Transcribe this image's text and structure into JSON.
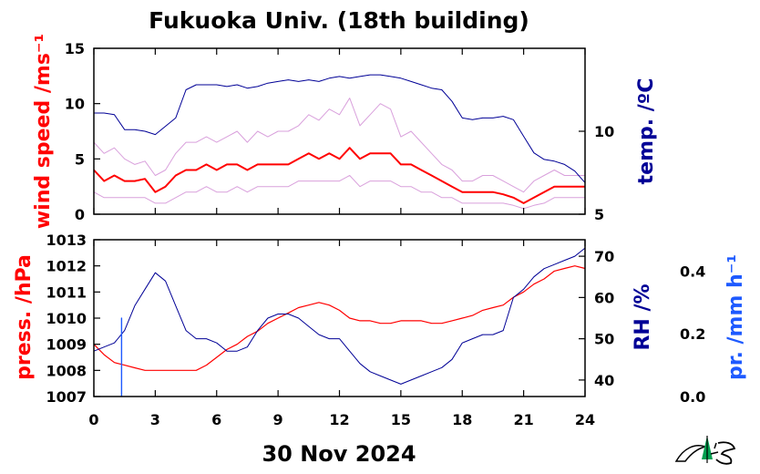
{
  "title": "Fukuoka Univ. (18th building)",
  "date_label": "30 Nov 2024",
  "colors": {
    "red": "#ff0000",
    "navy": "#000096",
    "blue": "#1e5aff",
    "gust": "#d9a0dc",
    "logo": "#00a050"
  },
  "logo": {
    "name": "university-logo-icon"
  },
  "chart_data": [
    {
      "type": "line",
      "panel": "top",
      "x_label": "",
      "x_ticks": [
        "0",
        "3",
        "6",
        "9",
        "12",
        "15",
        "18",
        "21",
        "24"
      ],
      "xlim": [
        0,
        24
      ],
      "left_axis": {
        "label": "wind speed /ms⁻¹",
        "color": "#ff0000",
        "ylim": [
          0,
          15
        ],
        "ticks": [
          "0",
          "5",
          "10",
          "15"
        ]
      },
      "right_axis": {
        "label": "temp. /ºC",
        "color": "#000096",
        "ylim": [
          5,
          15
        ],
        "ticks": [
          "5",
          "10"
        ]
      },
      "series": [
        {
          "axis": "left",
          "color": "#d9a0dc",
          "x": [
            0,
            0.5,
            1,
            1.5,
            2,
            2.5,
            3,
            3.5,
            4,
            4.5,
            5,
            5.5,
            6,
            6.5,
            7,
            7.5,
            8,
            8.5,
            9,
            9.5,
            10,
            10.5,
            11,
            11.5,
            12,
            12.5,
            13,
            13.5,
            14,
            14.5,
            15,
            15.5,
            16,
            16.5,
            17,
            17.5,
            18,
            18.5,
            19,
            19.5,
            20,
            20.5,
            21,
            21.5,
            22,
            22.5,
            23,
            23.5,
            24
          ],
          "y": [
            6.5,
            5.5,
            6.0,
            5.0,
            4.5,
            4.8,
            3.5,
            4.0,
            5.5,
            6.5,
            6.5,
            7.0,
            6.5,
            7.0,
            7.5,
            6.5,
            7.5,
            7.0,
            7.5,
            7.5,
            8.0,
            9.0,
            8.5,
            9.5,
            9.0,
            10.5,
            8.0,
            9.0,
            10.0,
            9.5,
            7.0,
            7.5,
            6.5,
            5.5,
            4.5,
            4.0,
            3.0,
            3.0,
            3.5,
            3.5,
            3.0,
            2.5,
            2.0,
            3.0,
            3.5,
            4.0,
            3.5,
            3.5,
            3.5
          ]
        },
        {
          "axis": "left",
          "color": "#d9a0dc",
          "x": [
            0,
            0.5,
            1,
            1.5,
            2,
            2.5,
            3,
            3.5,
            4,
            4.5,
            5,
            5.5,
            6,
            6.5,
            7,
            7.5,
            8,
            8.5,
            9,
            9.5,
            10,
            10.5,
            11,
            11.5,
            12,
            12.5,
            13,
            13.5,
            14,
            14.5,
            15,
            15.5,
            16,
            16.5,
            17,
            17.5,
            18,
            18.5,
            19,
            19.5,
            20,
            20.5,
            21,
            21.5,
            22,
            22.5,
            23,
            23.5,
            24
          ],
          "y": [
            2.0,
            1.5,
            1.5,
            1.5,
            1.5,
            1.5,
            1.0,
            1.0,
            1.5,
            2.0,
            2.0,
            2.5,
            2.0,
            2.0,
            2.5,
            2.0,
            2.5,
            2.5,
            2.5,
            2.5,
            3.0,
            3.0,
            3.0,
            3.0,
            3.0,
            3.5,
            2.5,
            3.0,
            3.0,
            3.0,
            2.5,
            2.5,
            2.0,
            2.0,
            1.5,
            1.5,
            1.0,
            1.0,
            1.0,
            1.0,
            1.0,
            0.8,
            0.5,
            0.8,
            1.0,
            1.5,
            1.5,
            1.5,
            1.5
          ]
        },
        {
          "axis": "left",
          "color": "#ff0000",
          "name": "",
          "x": [
            0,
            0.5,
            1,
            1.5,
            2,
            2.5,
            3,
            3.5,
            4,
            4.5,
            5,
            5.5,
            6,
            6.5,
            7,
            7.5,
            8,
            8.5,
            9,
            9.5,
            10,
            10.5,
            11,
            11.5,
            12,
            12.5,
            13,
            13.5,
            14,
            14.5,
            15,
            15.5,
            16,
            16.5,
            17,
            17.5,
            18,
            18.5,
            19,
            19.5,
            20,
            20.5,
            21,
            21.5,
            22,
            22.5,
            23,
            23.5,
            24
          ],
          "y": [
            4.0,
            3.0,
            3.5,
            3.0,
            3.0,
            3.2,
            2.0,
            2.5,
            3.5,
            4.0,
            4.0,
            4.5,
            4.0,
            4.5,
            4.5,
            4.0,
            4.5,
            4.5,
            4.5,
            4.5,
            5.0,
            5.5,
            5.0,
            5.5,
            5.0,
            6.0,
            5.0,
            5.5,
            5.5,
            5.5,
            4.5,
            4.5,
            4.0,
            3.5,
            3.0,
            2.5,
            2.0,
            2.0,
            2.0,
            2.0,
            1.8,
            1.5,
            1.0,
            1.5,
            2.0,
            2.5,
            2.5,
            2.5,
            2.5
          ]
        },
        {
          "axis": "right",
          "color": "#000096",
          "name": "",
          "x": [
            0,
            0.5,
            1,
            1.5,
            2,
            2.5,
            3,
            3.5,
            4,
            4.5,
            5,
            5.5,
            6,
            6.5,
            7,
            7.5,
            8,
            8.5,
            9,
            9.5,
            10,
            10.5,
            11,
            11.5,
            12,
            12.5,
            13,
            13.5,
            14,
            14.5,
            15,
            15.5,
            16,
            16.5,
            17,
            17.5,
            18,
            18.5,
            19,
            19.5,
            20,
            20.5,
            21,
            21.5,
            22,
            22.5,
            23,
            23.5,
            24
          ],
          "y": [
            11.1,
            11.1,
            11.0,
            10.1,
            10.1,
            10.0,
            9.8,
            10.3,
            10.8,
            12.5,
            12.8,
            12.8,
            12.8,
            12.7,
            12.8,
            12.6,
            12.7,
            12.9,
            13.0,
            13.1,
            13.0,
            13.1,
            13.0,
            13.2,
            13.3,
            13.2,
            13.3,
            13.4,
            13.4,
            13.3,
            13.2,
            13.0,
            12.8,
            12.6,
            12.5,
            11.8,
            10.8,
            10.7,
            10.8,
            10.8,
            10.9,
            10.7,
            9.7,
            8.7,
            8.3,
            8.2,
            8.0,
            7.6,
            6.9
          ]
        }
      ]
    },
    {
      "type": "line",
      "panel": "bottom",
      "x_label": "30 Nov 2024",
      "x_ticks": [
        "0",
        "3",
        "6",
        "9",
        "12",
        "15",
        "18",
        "21",
        "24"
      ],
      "xlim": [
        0,
        24
      ],
      "left_axis": {
        "label": "press. /hPa",
        "color": "#ff0000",
        "ylim": [
          1007,
          1013
        ],
        "ticks": [
          "1007",
          "1008",
          "1009",
          "1010",
          "1011",
          "1012",
          "1013"
        ]
      },
      "right_axis": {
        "label": "RH /%",
        "color": "#000096",
        "ylim": [
          36,
          74
        ],
        "ticks": [
          "40",
          "50",
          "60",
          "70"
        ]
      },
      "right_axis_2": {
        "label": "pr. /mm h⁻¹",
        "color": "#1e5aff",
        "ylim": [
          0.0,
          0.5
        ],
        "ticks": [
          "0.0",
          "0.2",
          "0.4"
        ]
      },
      "series": [
        {
          "axis": "left",
          "color": "#ff0000",
          "name": "",
          "x": [
            0,
            0.5,
            1,
            1.5,
            2,
            2.5,
            3,
            3.5,
            4,
            4.5,
            5,
            5.5,
            6,
            6.5,
            7,
            7.5,
            8,
            8.5,
            9,
            9.5,
            10,
            10.5,
            11,
            11.5,
            12,
            12.5,
            13,
            13.5,
            14,
            14.5,
            15,
            15.5,
            16,
            16.5,
            17,
            17.5,
            18,
            18.5,
            19,
            19.5,
            20,
            20.5,
            21,
            21.5,
            22,
            22.5,
            23,
            23.5,
            24
          ],
          "y": [
            1009.0,
            1008.6,
            1008.3,
            1008.2,
            1008.1,
            1008.0,
            1008.0,
            1008.0,
            1008.0,
            1008.0,
            1008.0,
            1008.2,
            1008.5,
            1008.8,
            1009.0,
            1009.3,
            1009.5,
            1009.8,
            1010.0,
            1010.2,
            1010.4,
            1010.5,
            1010.6,
            1010.5,
            1010.3,
            1010.0,
            1009.9,
            1009.9,
            1009.8,
            1009.8,
            1009.9,
            1009.9,
            1009.9,
            1009.8,
            1009.8,
            1009.9,
            1010.0,
            1010.1,
            1010.3,
            1010.4,
            1010.5,
            1010.8,
            1011.0,
            1011.3,
            1011.5,
            1011.8,
            1011.9,
            1012.0,
            1011.9
          ]
        },
        {
          "axis": "right",
          "color": "#000096",
          "name": "",
          "x": [
            0,
            0.5,
            1,
            1.5,
            2,
            2.5,
            3,
            3.5,
            4,
            4.5,
            5,
            5.5,
            6,
            6.5,
            7,
            7.5,
            8,
            8.5,
            9,
            9.5,
            10,
            10.5,
            11,
            11.5,
            12,
            12.5,
            13,
            13.5,
            14,
            14.5,
            15,
            15.5,
            16,
            16.5,
            17,
            17.5,
            18,
            18.5,
            19,
            19.5,
            20,
            20.5,
            21,
            21.5,
            22,
            22.5,
            23,
            23.5,
            24
          ],
          "y": [
            47,
            48,
            49,
            52,
            58,
            62,
            66,
            64,
            58,
            52,
            50,
            50,
            49,
            47,
            47,
            48,
            52,
            55,
            56,
            56,
            55,
            53,
            51,
            50,
            50,
            47,
            44,
            42,
            41,
            40,
            39,
            40,
            41,
            42,
            43,
            45,
            49,
            50,
            51,
            51,
            52,
            60,
            62,
            65,
            67,
            68,
            69,
            70,
            72
          ]
        },
        {
          "axis": "right2",
          "color": "#1e5aff",
          "name": "",
          "x": [
            1.35,
            1.35,
            1.36,
            1.36
          ],
          "y": [
            0.0,
            0.25,
            0.25,
            0.0
          ]
        }
      ]
    }
  ]
}
